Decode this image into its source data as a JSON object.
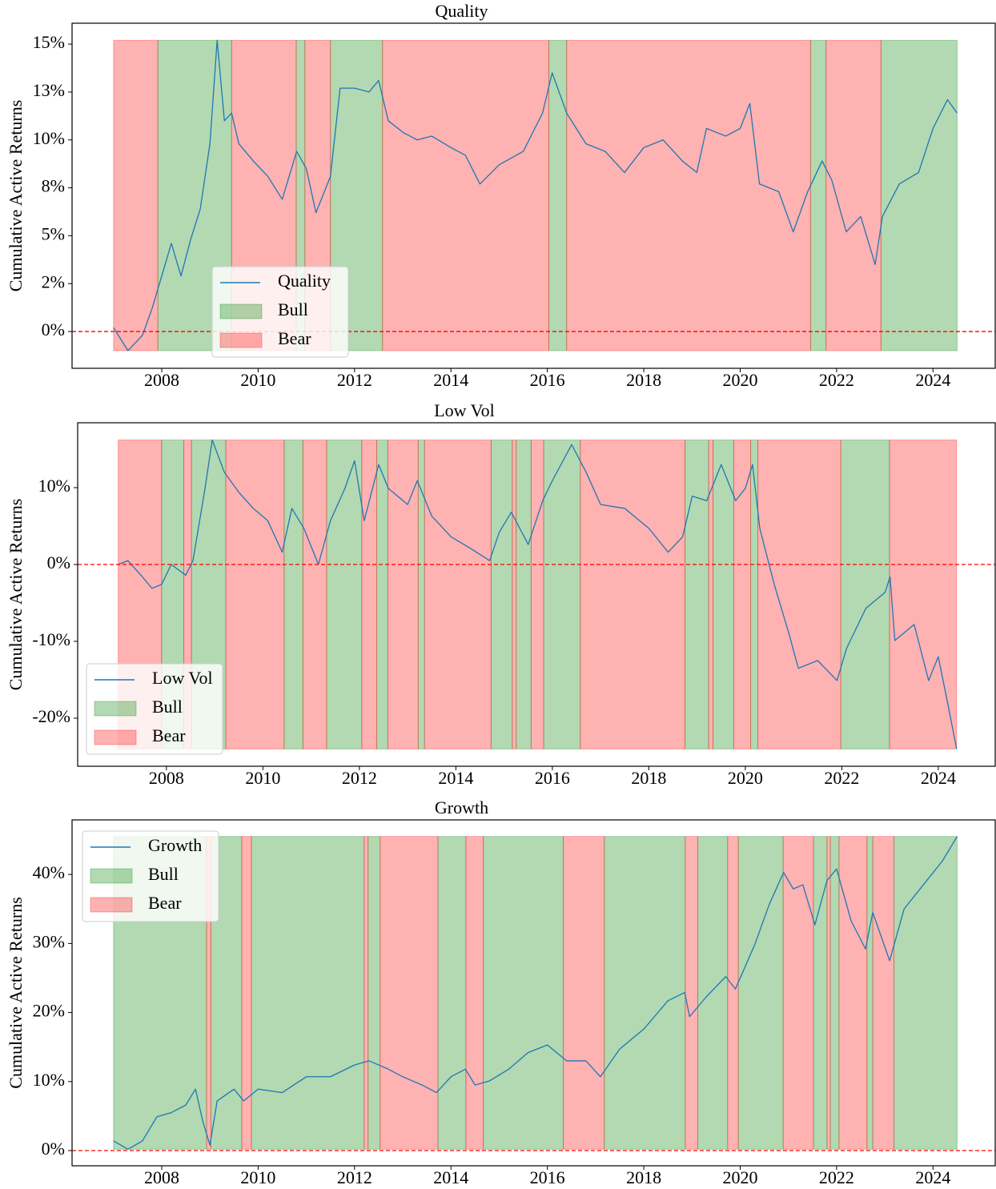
{
  "chart_data": [
    {
      "type": "line",
      "title": "Quality",
      "ylabel": "Cumulative Active Returns",
      "x": [
        2007.0,
        2007.3,
        2007.6,
        2007.8,
        2008.0,
        2008.2,
        2008.4,
        2008.6,
        2008.8,
        2009.0,
        2009.15,
        2009.3,
        2009.45,
        2009.6,
        2009.9,
        2010.2,
        2010.5,
        2010.8,
        2011.0,
        2011.2,
        2011.5,
        2011.7,
        2012.0,
        2012.3,
        2012.5,
        2012.7,
        2013.0,
        2013.3,
        2013.6,
        2014.0,
        2014.3,
        2014.6,
        2015.0,
        2015.5,
        2015.9,
        2016.1,
        2016.4,
        2016.8,
        2017.2,
        2017.6,
        2018.0,
        2018.4,
        2018.8,
        2019.1,
        2019.3,
        2019.7,
        2020.0,
        2020.2,
        2020.4,
        2020.8,
        2021.1,
        2021.4,
        2021.7,
        2021.9,
        2022.2,
        2022.5,
        2022.8,
        2022.95,
        2023.3,
        2023.7,
        2024.0,
        2024.3,
        2024.5
      ],
      "series": [
        {
          "name": "Quality",
          "color": "#1f77b4",
          "values": [
            0.2,
            -1.0,
            -0.2,
            1.2,
            2.9,
            4.6,
            2.9,
            4.8,
            6.4,
            9.8,
            15.2,
            11.0,
            11.4,
            9.8,
            8.9,
            8.1,
            6.9,
            9.4,
            8.5,
            6.2,
            8.1,
            12.7,
            12.7,
            12.5,
            13.1,
            11.0,
            10.4,
            10.0,
            10.2,
            9.6,
            9.2,
            7.7,
            8.7,
            9.4,
            11.4,
            13.5,
            11.4,
            9.8,
            9.4,
            8.3,
            9.6,
            10.0,
            8.9,
            8.3,
            10.6,
            10.2,
            10.6,
            11.9,
            7.7,
            7.3,
            5.2,
            7.3,
            8.9,
            7.9,
            5.2,
            6.0,
            3.5,
            6.0,
            7.7,
            8.3,
            10.6,
            12.1,
            11.4
          ]
        }
      ],
      "regimes": [
        {
          "name": "Bull",
          "color": "green",
          "alpha": 0.3,
          "spans": [
            [
              2007.92,
              2009.45
            ],
            [
              2010.79,
              2010.97
            ],
            [
              2011.5,
              2012.58
            ],
            [
              2016.03,
              2016.4
            ],
            [
              2021.46,
              2021.78
            ],
            [
              2022.92,
              2024.5
            ]
          ]
        },
        {
          "name": "Bear",
          "color": "red",
          "alpha": 0.3,
          "spans": [
            [
              2007.0,
              2007.92
            ],
            [
              2009.45,
              2010.79
            ],
            [
              2010.97,
              2011.5
            ],
            [
              2012.58,
              2016.03
            ],
            [
              2016.4,
              2021.46
            ],
            [
              2021.78,
              2022.92
            ]
          ]
        }
      ],
      "reference_line": {
        "y": 0,
        "color": "red",
        "style": "dashed"
      },
      "xlim": [
        2006.14,
        2025.29
      ],
      "xticks": [
        2008,
        2010,
        2012,
        2014,
        2016,
        2018,
        2020,
        2022,
        2024
      ],
      "ylim": [
        -1.92,
        16.09
      ],
      "yticks": [
        {
          "value": 0,
          "label": "0%"
        },
        {
          "value": 2.5,
          "label": "2%"
        },
        {
          "value": 5,
          "label": "5%"
        },
        {
          "value": 7.5,
          "label": "8%"
        },
        {
          "value": 10,
          "label": "10%"
        },
        {
          "value": 12.5,
          "label": "13%"
        },
        {
          "value": 15,
          "label": "15%"
        }
      ],
      "grid": false,
      "legend": "best"
    },
    {
      "type": "line",
      "title": "Low Vol",
      "ylabel": "Cumulative Active Returns",
      "x": [
        2007.0,
        2007.2,
        2007.5,
        2007.7,
        2007.9,
        2008.1,
        2008.4,
        2008.55,
        2008.8,
        2008.95,
        2009.2,
        2009.5,
        2009.8,
        2010.1,
        2010.4,
        2010.6,
        2010.85,
        2011.15,
        2011.4,
        2011.7,
        2011.9,
        2012.1,
        2012.4,
        2012.6,
        2013.0,
        2013.2,
        2013.5,
        2013.9,
        2014.3,
        2014.7,
        2014.9,
        2015.15,
        2015.5,
        2015.8,
        2016.0,
        2016.4,
        2016.7,
        2017.0,
        2017.5,
        2018.0,
        2018.4,
        2018.7,
        2018.9,
        2019.2,
        2019.5,
        2019.8,
        2020.0,
        2020.15,
        2020.3,
        2020.6,
        2020.9,
        2021.1,
        2021.5,
        2021.9,
        2022.1,
        2022.5,
        2022.9,
        2023.0,
        2023.1,
        2023.5,
        2023.8,
        2024.0,
        2024.2,
        2024.38
      ],
      "series": [
        {
          "name": "Low Vol",
          "color": "#1f77b4",
          "values": [
            0,
            0.5,
            -1.6,
            -3.1,
            -2.6,
            0,
            -1.4,
            0.5,
            9.9,
            16.2,
            12.0,
            9.4,
            7.3,
            5.7,
            1.6,
            7.3,
            4.7,
            0,
            5.7,
            9.9,
            13.5,
            5.7,
            13.0,
            9.9,
            7.8,
            10.9,
            6.3,
            3.6,
            2.1,
            0.5,
            4.2,
            6.8,
            2.6,
            8.3,
            10.9,
            15.6,
            12.0,
            7.8,
            7.3,
            4.7,
            1.6,
            3.6,
            8.9,
            8.3,
            13.0,
            8.3,
            9.9,
            13.0,
            4.7,
            -2.6,
            -8.9,
            -13.5,
            -12.5,
            -15.1,
            -10.9,
            -5.7,
            -3.6,
            -1.6,
            -9.9,
            -7.8,
            -15.1,
            -12.0,
            -18.2,
            -24.0
          ]
        }
      ],
      "regimes": [
        {
          "name": "Bull",
          "color": "green",
          "alpha": 0.3,
          "spans": [
            [
              2007.9,
              2008.36
            ],
            [
              2008.52,
              2009.23
            ],
            [
              2010.44,
              2010.83
            ],
            [
              2011.32,
              2012.05
            ],
            [
              2012.36,
              2012.59
            ],
            [
              2013.22,
              2013.35
            ],
            [
              2014.73,
              2015.17
            ],
            [
              2015.25,
              2015.56
            ],
            [
              2015.82,
              2016.58
            ],
            [
              2018.75,
              2019.24
            ],
            [
              2019.33,
              2019.76
            ],
            [
              2020.11,
              2020.26
            ],
            [
              2021.98,
              2022.99
            ]
          ]
        },
        {
          "name": "Bear",
          "color": "red",
          "alpha": 0.3,
          "spans": [
            [
              2007.0,
              2007.9
            ],
            [
              2008.36,
              2008.52
            ],
            [
              2009.23,
              2010.44
            ],
            [
              2010.83,
              2011.32
            ],
            [
              2012.05,
              2012.36
            ],
            [
              2012.59,
              2013.22
            ],
            [
              2013.35,
              2014.73
            ],
            [
              2015.17,
              2015.25
            ],
            [
              2015.56,
              2015.82
            ],
            [
              2016.58,
              2018.75
            ],
            [
              2019.24,
              2019.33
            ],
            [
              2019.76,
              2020.11
            ],
            [
              2020.26,
              2021.98
            ],
            [
              2022.99,
              2024.38
            ]
          ]
        }
      ],
      "reference_line": {
        "y": 0,
        "color": "red",
        "style": "dashed"
      },
      "xlim": [
        2006.16,
        2025.18
      ],
      "xticks": [
        2008,
        2010,
        2012,
        2014,
        2016,
        2018,
        2020,
        2022,
        2024
      ],
      "ylim": [
        -26.25,
        18.44
      ],
      "yticks": [
        {
          "value": -20,
          "label": "-20%"
        },
        {
          "value": -10,
          "label": "-10%"
        },
        {
          "value": 0,
          "label": "0%"
        },
        {
          "value": 10,
          "label": "10%"
        }
      ],
      "grid": false,
      "legend": "lower left"
    },
    {
      "type": "line",
      "title": "Growth",
      "ylabel": "Cumulative Active Returns",
      "x": [
        2007.0,
        2007.3,
        2007.6,
        2007.9,
        2008.2,
        2008.5,
        2008.7,
        2008.85,
        2009.0,
        2009.15,
        2009.5,
        2009.7,
        2010.0,
        2010.5,
        2011.0,
        2011.5,
        2012.0,
        2012.3,
        2012.7,
        2013.0,
        2013.4,
        2013.7,
        2014.0,
        2014.3,
        2014.5,
        2014.8,
        2015.2,
        2015.6,
        2016.0,
        2016.4,
        2016.8,
        2017.1,
        2017.5,
        2018.0,
        2018.5,
        2018.85,
        2018.95,
        2019.3,
        2019.7,
        2019.9,
        2020.3,
        2020.6,
        2020.9,
        2021.1,
        2021.3,
        2021.55,
        2021.8,
        2022.0,
        2022.3,
        2022.6,
        2022.75,
        2023.1,
        2023.4,
        2023.8,
        2024.2,
        2024.5
      ],
      "series": [
        {
          "name": "Growth",
          "color": "#1f77b4",
          "values": [
            1.4,
            0.2,
            1.4,
            4.9,
            5.5,
            6.6,
            8.9,
            4.3,
            0.8,
            7.2,
            8.9,
            7.2,
            8.9,
            8.4,
            10.7,
            10.7,
            12.4,
            13.0,
            11.8,
            10.7,
            9.5,
            8.4,
            10.7,
            11.8,
            9.5,
            10.1,
            11.8,
            14.2,
            15.3,
            13.0,
            13.0,
            10.7,
            14.7,
            17.6,
            21.7,
            22.9,
            19.4,
            22.3,
            25.2,
            23.4,
            29.8,
            35.6,
            40.3,
            37.9,
            38.5,
            32.7,
            39.1,
            40.8,
            33.3,
            29.2,
            34.5,
            27.5,
            35.0,
            38.5,
            42.0,
            45.5
          ]
        }
      ],
      "regimes": [
        {
          "name": "Bull",
          "color": "green",
          "alpha": 0.3,
          "spans": [
            [
              2007.0,
              2008.93
            ],
            [
              2009.02,
              2009.66
            ],
            [
              2009.86,
              2012.2
            ],
            [
              2012.28,
              2012.53
            ],
            [
              2013.73,
              2014.31
            ],
            [
              2014.67,
              2016.33
            ],
            [
              2017.18,
              2018.86
            ],
            [
              2019.12,
              2019.74
            ],
            [
              2019.96,
              2020.89
            ],
            [
              2021.52,
              2021.8
            ],
            [
              2021.87,
              2022.05
            ],
            [
              2022.63,
              2022.75
            ],
            [
              2023.19,
              2024.5
            ]
          ]
        },
        {
          "name": "Bear",
          "color": "red",
          "alpha": 0.3,
          "spans": [
            [
              2008.93,
              2009.02
            ],
            [
              2009.66,
              2009.86
            ],
            [
              2012.2,
              2012.28
            ],
            [
              2012.53,
              2013.73
            ],
            [
              2014.31,
              2014.67
            ],
            [
              2016.33,
              2017.18
            ],
            [
              2018.86,
              2019.12
            ],
            [
              2019.74,
              2019.96
            ],
            [
              2020.89,
              2021.52
            ],
            [
              2021.8,
              2021.87
            ],
            [
              2022.05,
              2022.63
            ],
            [
              2022.75,
              2023.19
            ]
          ]
        }
      ],
      "reference_line": {
        "y": 0,
        "color": "red",
        "style": "dashed"
      },
      "xlim": [
        2006.14,
        2025.29
      ],
      "xticks": [
        2008,
        2010,
        2012,
        2014,
        2016,
        2018,
        2020,
        2022,
        2024
      ],
      "ylim": [
        -2.2,
        47.9
      ],
      "yticks": [
        {
          "value": 0,
          "label": "0%"
        },
        {
          "value": 10,
          "label": "10%"
        },
        {
          "value": 20,
          "label": "20%"
        },
        {
          "value": 30,
          "label": "30%"
        },
        {
          "value": 40,
          "label": "40%"
        }
      ],
      "grid": false,
      "legend": "upper left"
    }
  ]
}
